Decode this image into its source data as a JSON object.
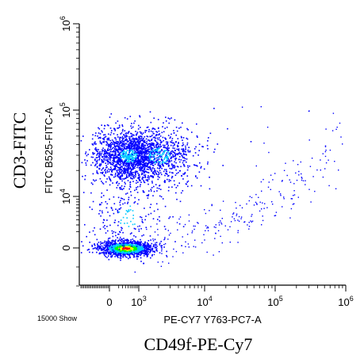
{
  "figure": {
    "outer_ylabel": "CD3-FITC",
    "outer_xlabel": "CD49f-PE-Cy7",
    "event_count_label": "15000 Show"
  },
  "chart_data": {
    "type": "scatter",
    "title": "",
    "xlabel": "PE-CY7 Y763-PC7-A",
    "ylabel": "FITC B525-FITC-A",
    "x_scale": "logicle",
    "y_scale": "logicle",
    "x_ticks": [
      {
        "base": "0",
        "exp": ""
      },
      {
        "base": "10",
        "exp": "3"
      },
      {
        "base": "10",
        "exp": "4"
      },
      {
        "base": "10",
        "exp": "5"
      },
      {
        "base": "10",
        "exp": "6"
      }
    ],
    "y_ticks": [
      {
        "base": "0",
        "exp": ""
      },
      {
        "base": "10",
        "exp": "4"
      },
      {
        "base": "10",
        "exp": "5"
      },
      {
        "base": "10",
        "exp": "6"
      }
    ],
    "color_scale": [
      "#0000ff",
      "#00c8ff",
      "#00ff00",
      "#ffff00",
      "#ff0000"
    ],
    "populations": [
      {
        "name": "CD3-negative cluster",
        "cx": 300,
        "cy": 0,
        "sx": 0.18,
        "sy": 0.05,
        "count": 1400,
        "dense": true
      },
      {
        "name": "CD3-positive cluster",
        "cx": 400,
        "cy": 30000,
        "sx": 0.25,
        "sy": 0.18,
        "count": 1500,
        "dense": false
      },
      {
        "name": "CD3-positive CD49f spread",
        "cx": 2000,
        "cy": 30000,
        "sx": 0.3,
        "sy": 0.22,
        "count": 650,
        "dense": false
      },
      {
        "name": "transitional events",
        "cx": 400,
        "cy": 4000,
        "sx": 0.3,
        "sy": 0.3,
        "count": 250,
        "dense": false
      }
    ]
  }
}
